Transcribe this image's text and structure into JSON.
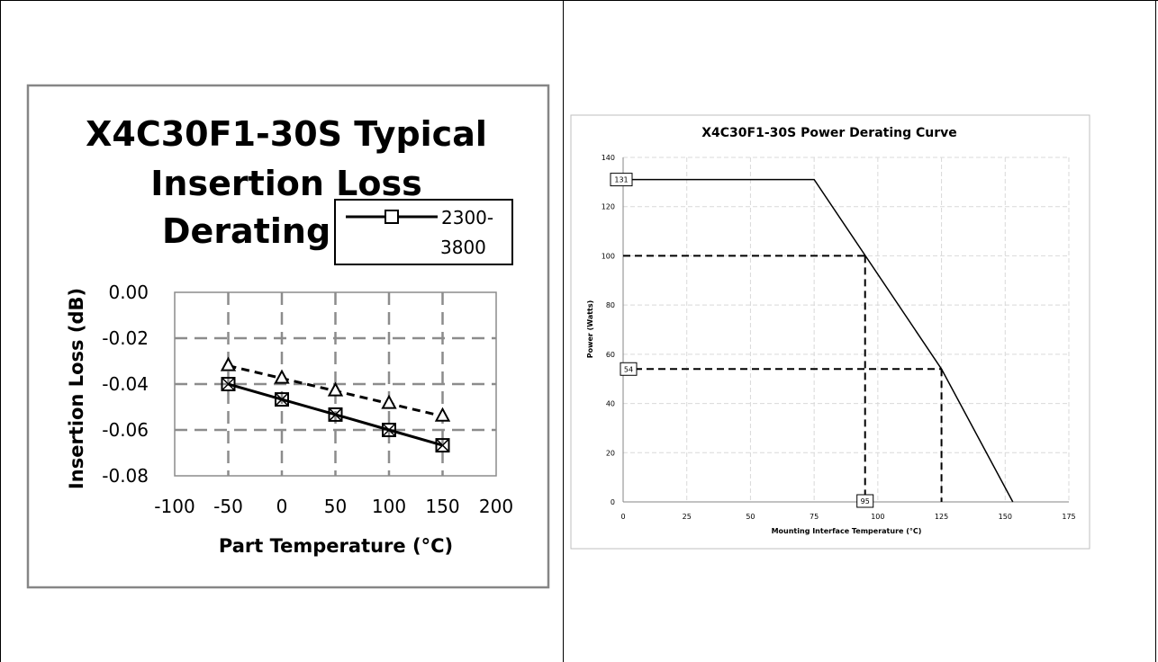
{
  "chart_data": [
    {
      "type": "line",
      "title": "X4C30F1-30S Typical Insertion Loss Derating C",
      "title_lines": [
        "X4C30F1-30S Typical",
        "Insertion Loss",
        "Derating C"
      ],
      "xlabel": "Part Temperature (°C)",
      "ylabel": "Insertion Loss (dB)",
      "xlim": [
        -100,
        200
      ],
      "ylim": [
        -0.08,
        0.0
      ],
      "xticks": [
        -100,
        -50,
        0,
        50,
        100,
        150,
        200
      ],
      "xtick_labels": [
        "-100",
        "-50",
        "0",
        "50",
        "100",
        "150",
        "200"
      ],
      "yticks": [
        0.0,
        -0.02,
        -0.04,
        -0.06,
        -0.08
      ],
      "ytick_labels": [
        "0.00",
        "-0.02",
        "-0.04",
        "-0.06",
        "-0.08"
      ],
      "grid": true,
      "legend_position": "top-right",
      "legend_lines": [
        "2300-",
        "3800"
      ],
      "series": [
        {
          "name": "2300-3800",
          "marker": "square",
          "dash": "solid",
          "x": [
            -50,
            0,
            50,
            100,
            150
          ],
          "y": [
            -0.04,
            -0.0467,
            -0.0533,
            -0.06,
            -0.0667
          ]
        },
        {
          "marker": "triangle",
          "dash": "dashed",
          "x": [
            -50,
            0,
            50,
            100,
            150
          ],
          "y": [
            -0.032,
            -0.0375,
            -0.043,
            -0.0485,
            -0.054
          ]
        }
      ]
    },
    {
      "type": "line",
      "title": "X4C30F1-30S Power Derating Curve",
      "xlabel": "Mounting Interface Temperature (°C)",
      "ylabel": "Power (Watts)",
      "xlim": [
        0,
        175
      ],
      "ylim": [
        0,
        140
      ],
      "xticks": [
        0,
        25,
        50,
        75,
        100,
        125,
        150,
        175
      ],
      "xtick_labels": [
        "0",
        "25",
        "50",
        "75",
        "100",
        "125",
        "150",
        "175"
      ],
      "yticks": [
        0,
        20,
        40,
        60,
        80,
        100,
        120,
        140
      ],
      "ytick_labels": [
        "0",
        "20",
        "40",
        "60",
        "80",
        "100",
        "120",
        "140"
      ],
      "grid": true,
      "series": [
        {
          "x": [
            0,
            75,
            125,
            153
          ],
          "y": [
            131,
            131,
            54,
            0
          ]
        }
      ],
      "guides": [
        {
          "x": 95,
          "y": 100
        },
        {
          "x": 125,
          "y": 54
        }
      ],
      "callouts": [
        "131",
        "54",
        "95"
      ]
    }
  ]
}
